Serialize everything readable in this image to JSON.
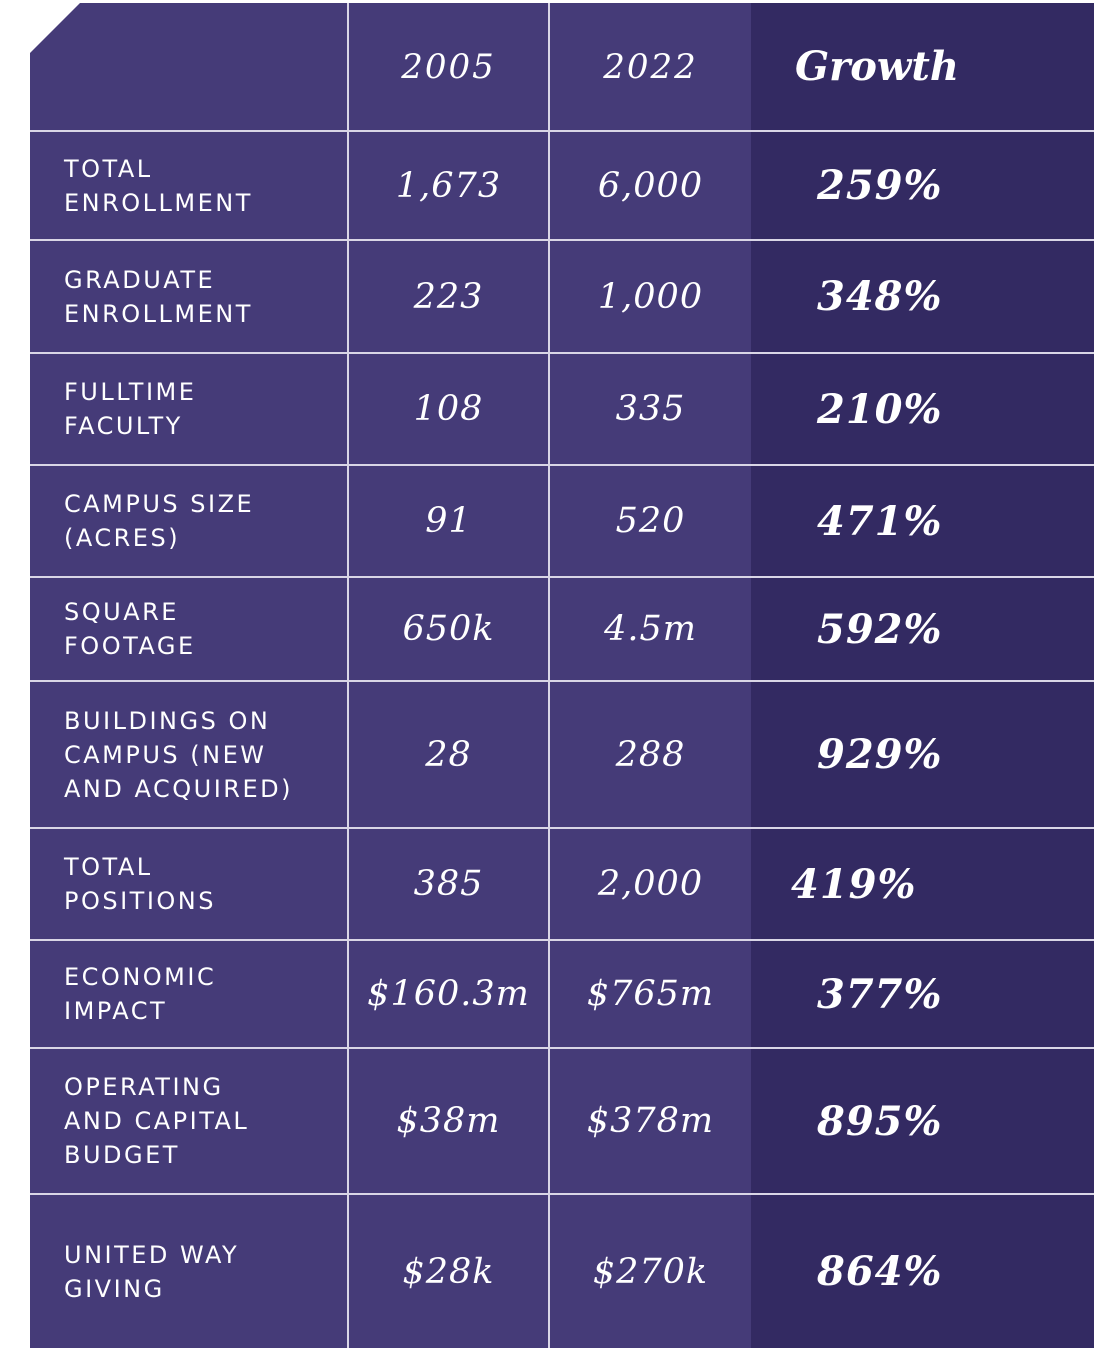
{
  "header": {
    "col1": "2005",
    "col2": "2022",
    "col3": "Growth"
  },
  "rows": [
    {
      "label": "TOTAL\nENROLLMENT",
      "v2005": "1,673",
      "v2022": "6,000",
      "growth": "259%"
    },
    {
      "label": "GRADUATE\nENROLLMENT",
      "v2005": "223",
      "v2022": "1,000",
      "growth": "348%"
    },
    {
      "label": "FULLTIME\nFACULTY",
      "v2005": "108",
      "v2022": "335",
      "growth": "210%"
    },
    {
      "label": "CAMPUS SIZE\n(ACRES)",
      "v2005": "91",
      "v2022": "520",
      "growth": "471%"
    },
    {
      "label": "SQUARE\nFOOTAGE",
      "v2005": "650k",
      "v2022": "4.5m",
      "growth": "592%"
    },
    {
      "label": "BUILDINGS ON\nCAMPUS (NEW\nAND ACQUIRED)",
      "v2005": "28",
      "v2022": "288",
      "growth": "929%"
    },
    {
      "label": "TOTAL\nPOSITIONS",
      "v2005": "385",
      "v2022": "2,000",
      "growth": "419%"
    },
    {
      "label": "ECONOMIC\nIMPACT",
      "v2005": "$160.3m",
      "v2022": "$765m",
      "growth": "377%"
    },
    {
      "label": "OPERATING\nAND CAPITAL\nBUDGET",
      "v2005": "$38m",
      "v2022": "$378m",
      "growth": "895%"
    },
    {
      "label": "UNITED WAY\nGIVING",
      "v2005": "$28k",
      "v2022": "$270k",
      "growth": "864%"
    }
  ],
  "colors": {
    "table": "#453b78",
    "growth_column": "#332a62",
    "lines": "#d9d6e6",
    "text": "#ffffff"
  }
}
